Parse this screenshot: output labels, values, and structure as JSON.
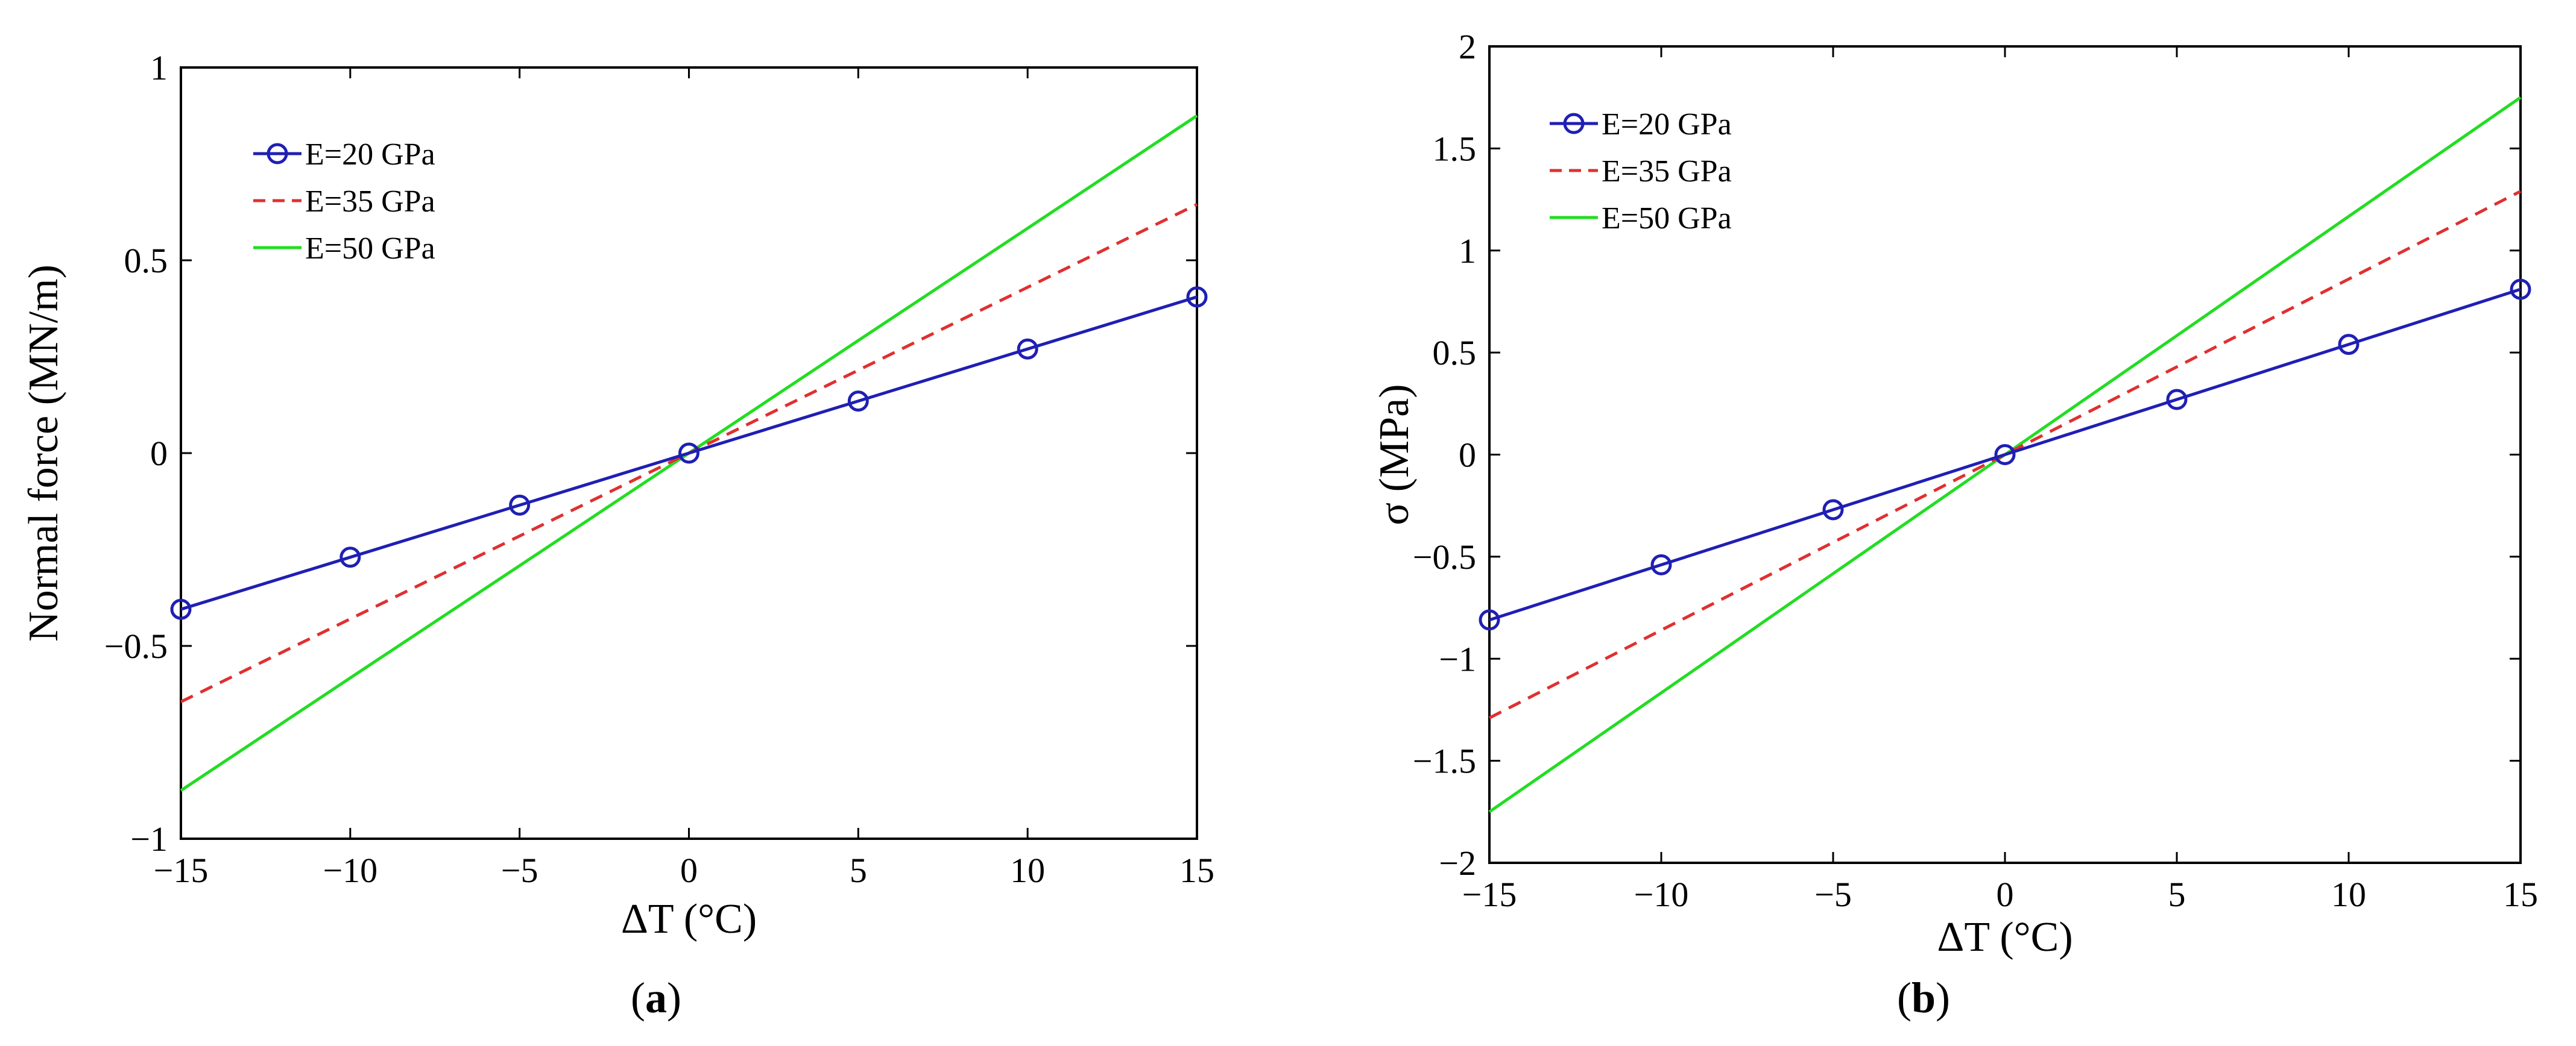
{
  "chart_data": [
    {
      "type": "line",
      "panel_label": "a",
      "xlabel": "ΔT (°C)",
      "ylabel": "Normal force (MN/m)",
      "x": [
        -15,
        -10,
        -5,
        0,
        5,
        10,
        15
      ],
      "xlim": [
        -15,
        15
      ],
      "ylim": [
        -1,
        1
      ],
      "xticks": [
        -15,
        -10,
        -5,
        0,
        5,
        10,
        15
      ],
      "yticks": [
        -1,
        -0.5,
        0,
        0.5,
        1
      ],
      "xtick_labels": [
        "−15",
        "−10",
        "−5",
        "0",
        "5",
        "10",
        "15"
      ],
      "ytick_labels": [
        "−1",
        "−0.5",
        "0",
        "0.5",
        "1"
      ],
      "grid": false,
      "legend_position": "top-left",
      "series": [
        {
          "name": "E=20 GPa",
          "color": "#1f1fb4",
          "style": "solid",
          "marker": "circle",
          "values": [
            -0.405,
            -0.27,
            -0.135,
            0,
            0.135,
            0.27,
            0.405
          ]
        },
        {
          "name": "E=35 GPa",
          "color": "#e03030",
          "style": "dashed",
          "marker": "none",
          "values": [
            -0.645,
            -0.43,
            -0.215,
            0,
            0.215,
            0.43,
            0.645
          ]
        },
        {
          "name": "E=50 GPa",
          "color": "#22dd22",
          "style": "solid",
          "marker": "none",
          "values": [
            -0.875,
            -0.583,
            -0.292,
            0,
            0.292,
            0.583,
            0.875
          ]
        }
      ]
    },
    {
      "type": "line",
      "panel_label": "b",
      "xlabel": "ΔT (°C)",
      "ylabel": "σ (MPa)",
      "x": [
        -15,
        -10,
        -5,
        0,
        5,
        10,
        15
      ],
      "xlim": [
        -15,
        15
      ],
      "ylim": [
        -2,
        2
      ],
      "xticks": [
        -15,
        -10,
        -5,
        0,
        5,
        10,
        15
      ],
      "yticks": [
        -2,
        -1.5,
        -1,
        -0.5,
        0,
        0.5,
        1,
        1.5,
        2
      ],
      "xtick_labels": [
        "−15",
        "−10",
        "−5",
        "0",
        "5",
        "10",
        "15"
      ],
      "ytick_labels": [
        "−2",
        "−1.5",
        "−1",
        "−0.5",
        "0",
        "0.5",
        "1",
        "1.5",
        "2"
      ],
      "grid": false,
      "legend_position": "top-left",
      "series": [
        {
          "name": "E=20 GPa",
          "color": "#1f1fb4",
          "style": "solid",
          "marker": "circle",
          "values": [
            -0.81,
            -0.54,
            -0.27,
            0,
            0.27,
            0.54,
            0.81
          ]
        },
        {
          "name": "E=35 GPa",
          "color": "#e03030",
          "style": "dashed",
          "marker": "none",
          "values": [
            -1.29,
            -0.86,
            -0.43,
            0,
            0.43,
            0.86,
            1.29
          ]
        },
        {
          "name": "E=50 GPa",
          "color": "#22dd22",
          "style": "solid",
          "marker": "none",
          "values": [
            -1.75,
            -1.167,
            -0.583,
            0,
            0.583,
            1.167,
            1.75
          ]
        }
      ]
    }
  ]
}
